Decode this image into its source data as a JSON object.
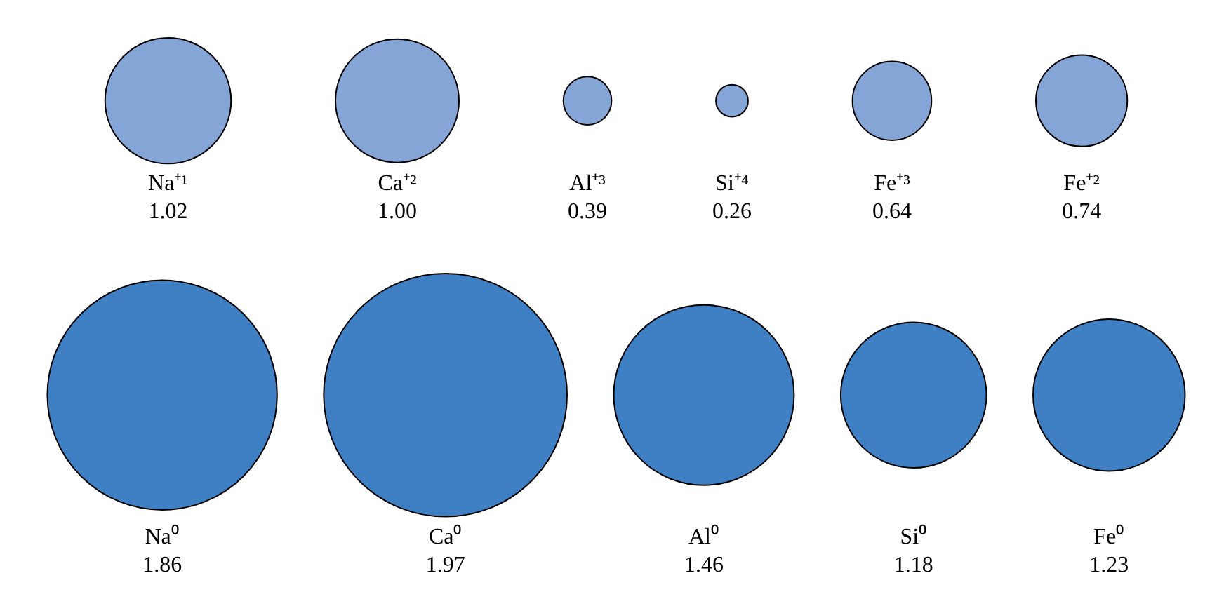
{
  "chart_data": [
    {
      "type": "other",
      "colors": [
        "#85a5d6",
        "#85a5d6",
        "#85a5d6",
        "#85a5d6",
        "#85a5d6",
        "#85a5d6"
      ],
      "data_labels": true,
      "categories": [
        "Na⁺¹",
        "Ca⁺²",
        "Al⁺³",
        "Si⁺⁴",
        "Fe⁺³",
        "Fe⁺²"
      ],
      "values": [
        1.02,
        1.0,
        0.39,
        0.26,
        0.64,
        0.74
      ],
      "value_labels": [
        "1.02",
        "1.00",
        "0.39",
        "0.26",
        "0.64",
        "0.74"
      ]
    },
    {
      "type": "other",
      "colors": [
        "#3f7fc3",
        "#3f7fc3",
        "#3f7fc3",
        "#3f7fc3",
        "#3f7fc3"
      ],
      "data_labels": true,
      "categories": [
        "Na⁰",
        "Ca⁰",
        "Al⁰",
        "Si⁰",
        "Fe⁰"
      ],
      "values": [
        1.86,
        1.97,
        1.46,
        1.18,
        1.23
      ],
      "value_labels": [
        "1.86",
        "1.97",
        "1.46",
        "1.18",
        "1.23"
      ]
    }
  ]
}
